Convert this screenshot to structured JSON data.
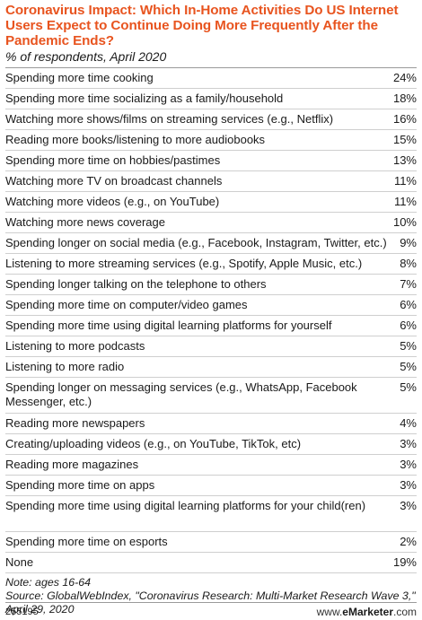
{
  "header": {
    "title": "Coronavirus Impact: Which In-Home Activities Do US Internet Users Expect to Continue Doing More Frequently After the Pandemic Ends?",
    "subtitle": "% of respondents, April 2020"
  },
  "chart_data": {
    "type": "table",
    "title": "Coronavirus Impact: Which In-Home Activities Do US Internet Users Expect to Continue Doing More Frequently After the Pandemic Ends?",
    "subtitle": "% of respondents, April 2020",
    "rows": [
      {
        "label": "Spending more time cooking",
        "value": "24%"
      },
      {
        "label": "Spending more time socializing as a family/household",
        "value": "18%"
      },
      {
        "label": "Watching more shows/films on streaming services (e.g., Netflix)",
        "value": "16%"
      },
      {
        "label": "Reading more books/listening to more audiobooks",
        "value": "15%"
      },
      {
        "label": "Spending more time on hobbies/pastimes",
        "value": "13%"
      },
      {
        "label": "Watching more TV on broadcast channels",
        "value": "11%"
      },
      {
        "label": "Watching more videos (e.g., on YouTube)",
        "value": "11%"
      },
      {
        "label": "Watching more news coverage",
        "value": "10%"
      },
      {
        "label": "Spending longer on social media (e.g., Facebook, Instagram, Twitter, etc.)",
        "value": "9%"
      },
      {
        "label": "Listening to more streaming services (e.g., Spotify, Apple Music, etc.)",
        "value": "8%"
      },
      {
        "label": "Spending longer talking on the telephone to others",
        "value": "7%"
      },
      {
        "label": "Spending more time on computer/video games",
        "value": "6%"
      },
      {
        "label": "Spending more time using digital learning platforms for yourself",
        "value": "6%"
      },
      {
        "label": "Listening to more podcasts",
        "value": "5%"
      },
      {
        "label": "Listening to more radio",
        "value": "5%"
      },
      {
        "label": "Spending longer on messaging services (e.g., WhatsApp, Facebook Messenger, etc.)",
        "value": "5%"
      },
      {
        "label": "Reading more newspapers",
        "value": "4%"
      },
      {
        "label": "Creating/uploading videos (e.g., on YouTube, TikTok, etc)",
        "value": "3%"
      },
      {
        "label": "Reading more magazines",
        "value": "3%"
      },
      {
        "label": "Spending more time on apps",
        "value": "3%"
      },
      {
        "label": "Spending more time using digital learning platforms for your child(ren)",
        "value": "3%"
      },
      {
        "label": "Spending more time on esports",
        "value": "2%"
      },
      {
        "label": "None",
        "value": "19%"
      }
    ]
  },
  "note": "Note: ages 16-64",
  "source": "Source: GlobalWebIndex, \"Coronavirus Research: Multi-Market Research Wave 3,\" April 29, 2020",
  "footer": {
    "chart_id": "255195",
    "brand_prefix": "www.",
    "brand_name": "eMarketer",
    "brand_suffix": ".com"
  }
}
